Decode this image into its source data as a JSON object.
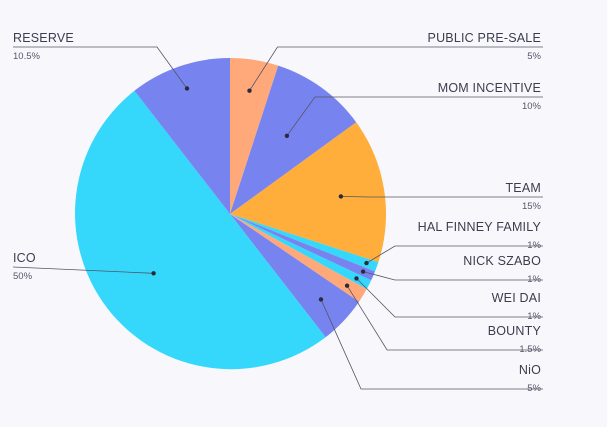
{
  "chart_data": {
    "type": "pie",
    "slices": [
      {
        "label": "PUBLIC PRE-SALE",
        "value": 5,
        "display": "5%",
        "color": "#ffa97a"
      },
      {
        "label": "MOM INCENTIVE",
        "value": 10,
        "display": "10%",
        "color": "#7784ef"
      },
      {
        "label": "TEAM",
        "value": 15,
        "display": "15%",
        "color": "#ffad3b"
      },
      {
        "label": "HAL FINNEY FAMILY",
        "value": 1,
        "display": "1%",
        "color": "#35d8fb"
      },
      {
        "label": "NICK SZABO",
        "value": 1,
        "display": "1%",
        "color": "#7784ef"
      },
      {
        "label": "WEI DAI",
        "value": 1,
        "display": "1%",
        "color": "#35d8fb"
      },
      {
        "label": "BOUNTY",
        "value": 1.5,
        "display": "1.5%",
        "color": "#ffa97a"
      },
      {
        "label": "NiO",
        "value": 5,
        "display": "5%",
        "color": "#7784ef"
      },
      {
        "label": "ICO",
        "value": 50,
        "display": "50%",
        "color": "#35d8fb"
      },
      {
        "label": "RESERVE",
        "value": 10.5,
        "display": "10.5%",
        "color": "#7784ef"
      }
    ],
    "legend": "none",
    "title": ""
  }
}
